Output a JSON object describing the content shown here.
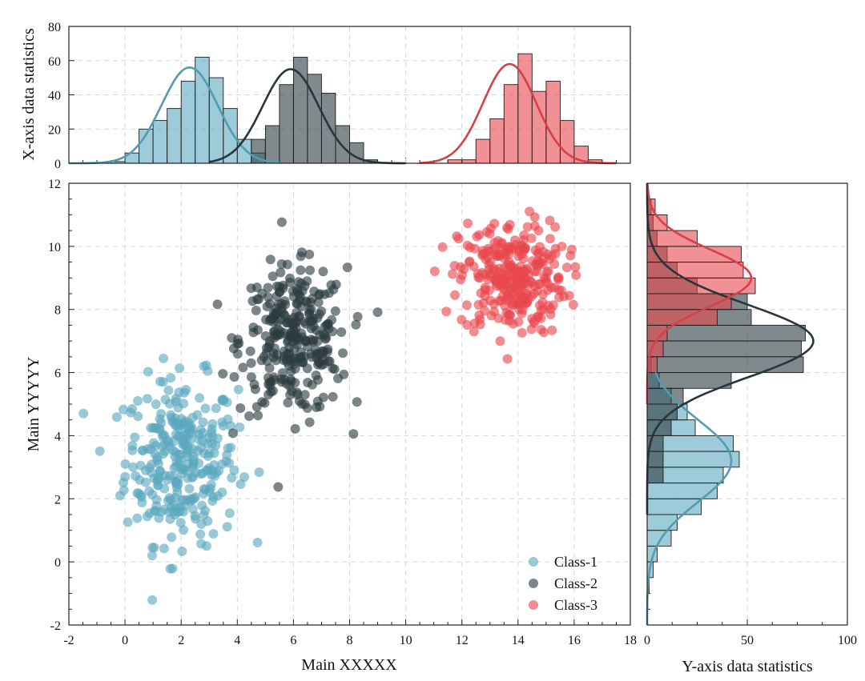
{
  "colors": {
    "class1": "#5ba8bf",
    "class2": "#2b3b40",
    "class3": "#e8474e"
  },
  "chart_data": {
    "type": "scatter",
    "subtype": "scatter-with-marginal-histograms",
    "xlabel": "Main XXXXX",
    "ylabel": "Main YYYYY",
    "xlim": [
      -2,
      18
    ],
    "ylim": [
      -2,
      12
    ],
    "xticks": [
      -2,
      0,
      2,
      4,
      6,
      8,
      10,
      12,
      14,
      16,
      18
    ],
    "yticks": [
      -2,
      0,
      2,
      4,
      6,
      8,
      10,
      12
    ],
    "grid": true,
    "legend_position": "bottom-right",
    "series": [
      {
        "name": "Class-1",
        "color": "#5ba8bf",
        "n_points": 300,
        "x_mean": 2.0,
        "x_std": 1.0,
        "y_mean": 3.2,
        "y_std": 1.3
      },
      {
        "name": "Class-2",
        "color": "#2b3b40",
        "n_points": 300,
        "x_mean": 6.0,
        "x_std": 0.95,
        "y_mean": 7.0,
        "y_std": 1.15
      },
      {
        "name": "Class-3",
        "color": "#e8474e",
        "n_points": 300,
        "x_mean": 13.8,
        "x_std": 0.95,
        "y_mean": 9.0,
        "y_std": 0.9
      }
    ],
    "marginal_x": {
      "ylabel": "X-axis data statistics",
      "ylim": [
        0,
        80
      ],
      "yticks": [
        0,
        20,
        40,
        60,
        80
      ],
      "bin_width": 0.5,
      "series": [
        {
          "name": "Class-1",
          "bins": [
            [
              -0.5,
              1
            ],
            [
              0,
              6
            ],
            [
              0.5,
              20
            ],
            [
              1,
              25
            ],
            [
              1.5,
              32
            ],
            [
              2,
              48
            ],
            [
              2.5,
              62
            ],
            [
              3,
              50
            ],
            [
              3.5,
              32
            ],
            [
              4,
              14
            ],
            [
              4.5,
              6
            ]
          ]
        },
        {
          "name": "Class-2",
          "bins": [
            [
              4.5,
              14
            ],
            [
              5,
              22
            ],
            [
              5.5,
              46
            ],
            [
              6,
              62
            ],
            [
              6.5,
              52
            ],
            [
              7,
              41
            ],
            [
              7.5,
              22
            ],
            [
              8,
              12
            ],
            [
              8.5,
              2
            ]
          ]
        },
        {
          "name": "Class-3",
          "bins": [
            [
              11.5,
              2
            ],
            [
              12,
              2
            ],
            [
              12.5,
              14
            ],
            [
              13,
              26
            ],
            [
              13.5,
              46
            ],
            [
              14,
              64
            ],
            [
              14.5,
              42
            ],
            [
              15,
              48
            ],
            [
              15.5,
              25
            ],
            [
              16,
              10
            ],
            [
              16.5,
              2
            ]
          ]
        }
      ],
      "kde": [
        {
          "name": "Class-1",
          "x_min": -2,
          "x_max": 5.5,
          "mean": 2.3,
          "std": 1.0,
          "peak": 56
        },
        {
          "name": "Class-2",
          "x_min": 3,
          "x_max": 10,
          "mean": 5.9,
          "std": 1.0,
          "peak": 55
        },
        {
          "name": "Class-3",
          "x_min": 10.5,
          "x_max": 17.5,
          "mean": 13.7,
          "std": 0.95,
          "peak": 58
        }
      ]
    },
    "marginal_y": {
      "xlabel": "Y-axis data statistics",
      "xlim": [
        0,
        100
      ],
      "xticks": [
        0,
        50,
        100
      ],
      "bin_width": 0.5,
      "series": [
        {
          "name": "Class-1",
          "bins": [
            [
              -1,
              1
            ],
            [
              -0.5,
              3
            ],
            [
              0,
              5
            ],
            [
              0.5,
              12
            ],
            [
              1,
              15
            ],
            [
              1.5,
              27
            ],
            [
              2,
              35
            ],
            [
              2.5,
              38
            ],
            [
              3,
              46
            ],
            [
              3.5,
              43
            ],
            [
              4,
              24
            ],
            [
              4.5,
              20
            ],
            [
              5,
              12
            ],
            [
              5.5,
              6
            ],
            [
              6,
              2
            ]
          ]
        },
        {
          "name": "Class-2",
          "bins": [
            [
              2.5,
              8
            ],
            [
              3,
              8
            ],
            [
              3.5,
              8
            ],
            [
              4,
              12
            ],
            [
              4.5,
              15
            ],
            [
              5,
              18
            ],
            [
              5.5,
              42
            ],
            [
              6,
              78
            ],
            [
              6.5,
              77
            ],
            [
              7,
              79
            ],
            [
              7.5,
              52
            ],
            [
              8,
              50
            ],
            [
              8.5,
              25
            ],
            [
              9,
              15
            ],
            [
              9.5,
              10
            ],
            [
              10,
              5
            ],
            [
              10.5,
              3
            ],
            [
              11,
              2
            ]
          ]
        },
        {
          "name": "Class-3",
          "bins": [
            [
              6,
              5
            ],
            [
              6.5,
              8
            ],
            [
              7,
              10
            ],
            [
              7.5,
              35
            ],
            [
              8,
              42
            ],
            [
              8.5,
              54
            ],
            [
              9,
              48
            ],
            [
              9.5,
              47
            ],
            [
              10,
              25
            ],
            [
              10.5,
              10
            ],
            [
              11,
              4
            ]
          ]
        }
      ],
      "kde": [
        {
          "name": "Class-1",
          "y_min": -2,
          "y_max": 6,
          "mean": 3.2,
          "std": 1.3,
          "peak": 42
        },
        {
          "name": "Class-2",
          "y_min": 1.5,
          "y_max": 12,
          "mean": 7.0,
          "std": 1.15,
          "peak": 83
        },
        {
          "name": "Class-3",
          "y_min": 5,
          "y_max": 12,
          "mean": 9.0,
          "std": 0.9,
          "peak": 52
        }
      ]
    }
  }
}
